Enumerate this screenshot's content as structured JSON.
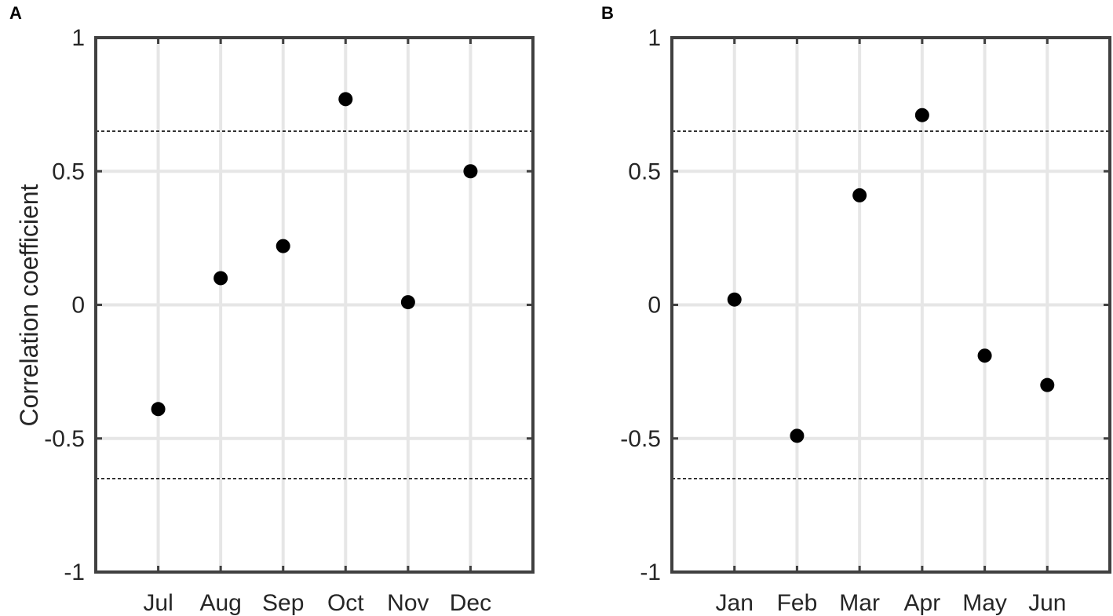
{
  "chart_data": [
    {
      "type": "scatter",
      "panel_label": "A",
      "categories": [
        "Jul",
        "Aug",
        "Sep",
        "Oct",
        "Nov",
        "Dec"
      ],
      "values": [
        -0.39,
        0.1,
        0.22,
        0.77,
        0.01,
        0.5
      ],
      "ylabel": "Correlation coefficient",
      "ylim": [
        -1,
        1
      ],
      "yticks": [
        "-1",
        "-0.5",
        "0",
        "0.5",
        "1"
      ],
      "thresholds": [
        0.65,
        -0.65
      ],
      "grid": true,
      "marker_color": "#000000"
    },
    {
      "type": "scatter",
      "panel_label": "B",
      "categories": [
        "Jan",
        "Feb",
        "Mar",
        "Apr",
        "May",
        "Jun"
      ],
      "values": [
        0.02,
        -0.49,
        0.41,
        0.71,
        -0.19,
        -0.3
      ],
      "ylabel": "",
      "ylim": [
        -1,
        1
      ],
      "yticks": [
        "-1",
        "-0.5",
        "0",
        "0.5",
        "1"
      ],
      "thresholds": [
        0.65,
        -0.65
      ],
      "grid": true,
      "marker_color": "#000000"
    }
  ],
  "colors": {
    "axis": "#404040",
    "grid": "#e6e6e6",
    "threshold": "#000000",
    "marker": "#000000"
  }
}
